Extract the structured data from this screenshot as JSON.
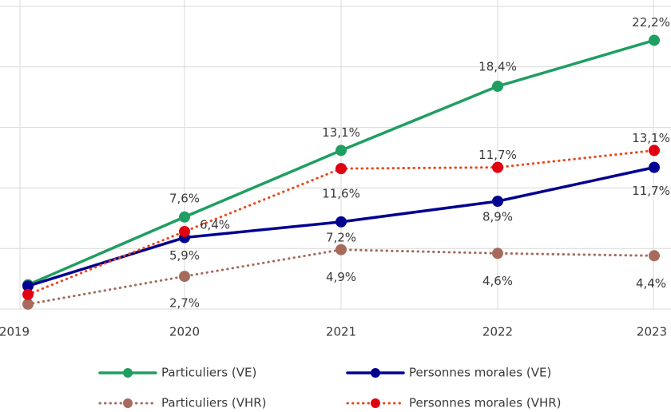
{
  "chart_data": {
    "type": "line",
    "categories": [
      "2019",
      "2020",
      "2021",
      "2022",
      "2023"
    ],
    "ylim": [
      0,
      25
    ],
    "yticks": [
      0,
      5,
      10,
      15,
      20,
      25
    ],
    "grid": true,
    "series": [
      {
        "name": "Particuliers (VE)",
        "color": "#1f9e62",
        "dash": false,
        "values": [
          2.0,
          7.6,
          13.1,
          18.4,
          22.2
        ],
        "value_labels": [
          null,
          "7,6%",
          "13,1%",
          "18,4%",
          "22,2%"
        ]
      },
      {
        "name": "Personnes morales (VE)",
        "color": "#000091",
        "dash": false,
        "values": [
          1.9,
          5.9,
          7.2,
          8.9,
          11.7
        ],
        "value_labels": [
          null,
          "5,9%",
          "7,2%",
          "8,9%",
          "11,7%"
        ]
      },
      {
        "name": "Particuliers (VHR)",
        "color": "#a66b5c",
        "dash": true,
        "values": [
          0.4,
          2.7,
          4.9,
          4.6,
          4.4
        ],
        "value_labels": [
          null,
          "2,7%",
          "4,9%",
          "4,6%",
          "4,4%"
        ]
      },
      {
        "name": "Personnes morales (VHR)",
        "color": "#e1000f",
        "line_color": "#e8491d",
        "dash": true,
        "values": [
          1.2,
          6.4,
          11.6,
          11.7,
          13.1
        ],
        "value_labels": [
          null,
          "6,4%",
          "11,6%",
          "11,7%",
          "13,1%"
        ]
      }
    ]
  }
}
